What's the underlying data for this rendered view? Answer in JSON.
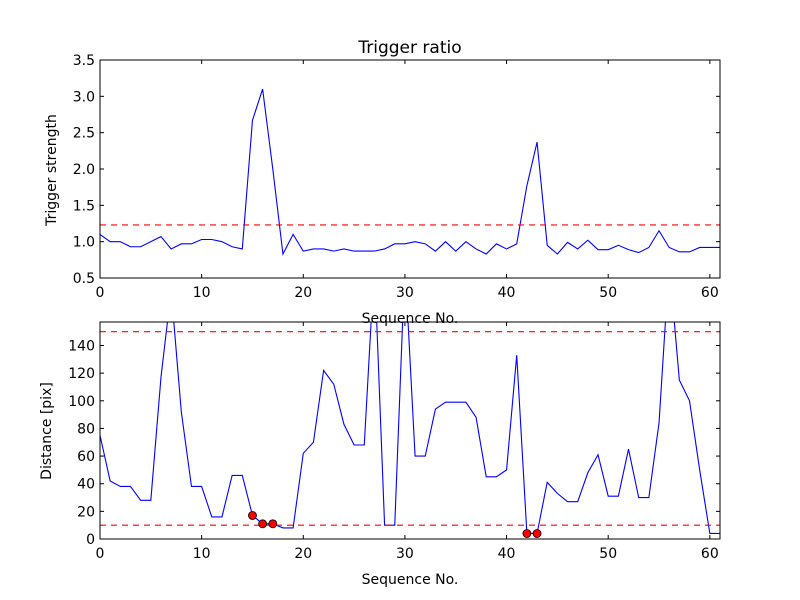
{
  "chart_data": [
    {
      "type": "line",
      "title": "Trigger ratio",
      "xlabel": "Sequence No.",
      "ylabel": "Trigger strength",
      "xlim": [
        0,
        61
      ],
      "ylim": [
        0.5,
        3.5
      ],
      "xticks": [
        0,
        10,
        20,
        30,
        40,
        50,
        60
      ],
      "yticks": [
        0.5,
        1.0,
        1.5,
        2.0,
        2.5,
        3.0,
        3.5
      ],
      "xtick_labels": [
        "0",
        "10",
        "20",
        "30",
        "40",
        "50",
        "60"
      ],
      "ytick_labels": [
        "0.5",
        "1.0",
        "1.5",
        "2.0",
        "2.5",
        "3.0",
        "3.5"
      ],
      "line_color": "#0000ff",
      "threshold_color": "#ff0000",
      "thresholds": [
        1.23
      ],
      "series": [
        {
          "x": [
            0,
            1,
            2,
            3,
            4,
            5,
            6,
            7,
            8,
            9,
            10,
            11,
            12,
            13,
            14,
            15,
            16,
            17,
            18,
            19,
            20,
            21,
            22,
            23,
            24,
            25,
            26,
            27,
            28,
            29,
            30,
            31,
            32,
            33,
            34,
            35,
            36,
            37,
            38,
            39,
            40,
            41,
            42,
            43,
            44,
            45,
            46,
            47,
            48,
            49,
            50,
            51,
            52,
            53,
            54,
            55,
            56,
            57,
            58,
            59,
            60,
            61
          ],
          "values": [
            1.1,
            1.0,
            1.0,
            0.93,
            0.93,
            1.0,
            1.07,
            0.9,
            0.97,
            0.97,
            1.03,
            1.03,
            1.0,
            0.93,
            0.9,
            2.67,
            3.1,
            2.0,
            0.83,
            1.1,
            0.87,
            0.9,
            0.9,
            0.87,
            0.9,
            0.87,
            0.87,
            0.87,
            0.9,
            0.97,
            0.97,
            1.0,
            0.97,
            0.87,
            1.0,
            0.87,
            1.0,
            0.9,
            0.83,
            0.97,
            0.9,
            0.97,
            1.77,
            2.37,
            0.95,
            0.83,
            0.99,
            0.9,
            1.02,
            0.89,
            0.89,
            0.95,
            0.89,
            0.85,
            0.92,
            1.15,
            0.92,
            0.86,
            0.86,
            0.92,
            0.92,
            0.92
          ]
        }
      ]
    },
    {
      "type": "line",
      "xlabel": "Sequence No.",
      "ylabel": "Distance [pix]",
      "xlim": [
        0,
        61
      ],
      "ylim": [
        0,
        157
      ],
      "xticks": [
        0,
        10,
        20,
        30,
        40,
        50,
        60
      ],
      "yticks": [
        0,
        20,
        40,
        60,
        80,
        100,
        120,
        140
      ],
      "xtick_labels": [
        "0",
        "10",
        "20",
        "30",
        "40",
        "50",
        "60"
      ],
      "ytick_labels": [
        "0",
        "20",
        "40",
        "60",
        "80",
        "100",
        "120",
        "140"
      ],
      "line_color": "#0000ff",
      "threshold_color": "#ff0000",
      "marker_color": "#ff0000",
      "thresholds": [
        10,
        150
      ],
      "series": [
        {
          "x": [
            0,
            1,
            2,
            3,
            4,
            5,
            6,
            7,
            8,
            9,
            10,
            11,
            12,
            13,
            14,
            15,
            16,
            17,
            18,
            19,
            20,
            21,
            22,
            23,
            24,
            25,
            26,
            27,
            28,
            29,
            30,
            31,
            32,
            33,
            34,
            35,
            36,
            37,
            38,
            39,
            40,
            41,
            42,
            43,
            44,
            45,
            46,
            47,
            48,
            49,
            50,
            51,
            52,
            53,
            54,
            55,
            56,
            57,
            58,
            59,
            60,
            61
          ],
          "values": [
            75,
            42,
            38,
            38,
            28,
            28,
            117,
            180,
            92,
            38,
            38,
            16,
            16,
            46,
            46,
            17,
            11,
            11,
            8,
            8,
            62,
            70,
            122,
            112,
            83,
            68,
            68,
            200,
            10,
            10,
            200,
            60,
            60,
            94,
            99,
            99,
            99,
            88,
            45,
            45,
            50,
            133,
            4,
            4,
            41,
            33,
            27,
            27,
            48,
            61,
            31,
            31,
            65,
            30,
            30,
            84,
            200,
            115,
            100,
            50,
            4,
            4
          ]
        }
      ],
      "markers": [
        {
          "x": 15,
          "y": 17
        },
        {
          "x": 16,
          "y": 11
        },
        {
          "x": 17,
          "y": 11
        },
        {
          "x": 42,
          "y": 4
        },
        {
          "x": 43,
          "y": 4
        }
      ]
    }
  ]
}
